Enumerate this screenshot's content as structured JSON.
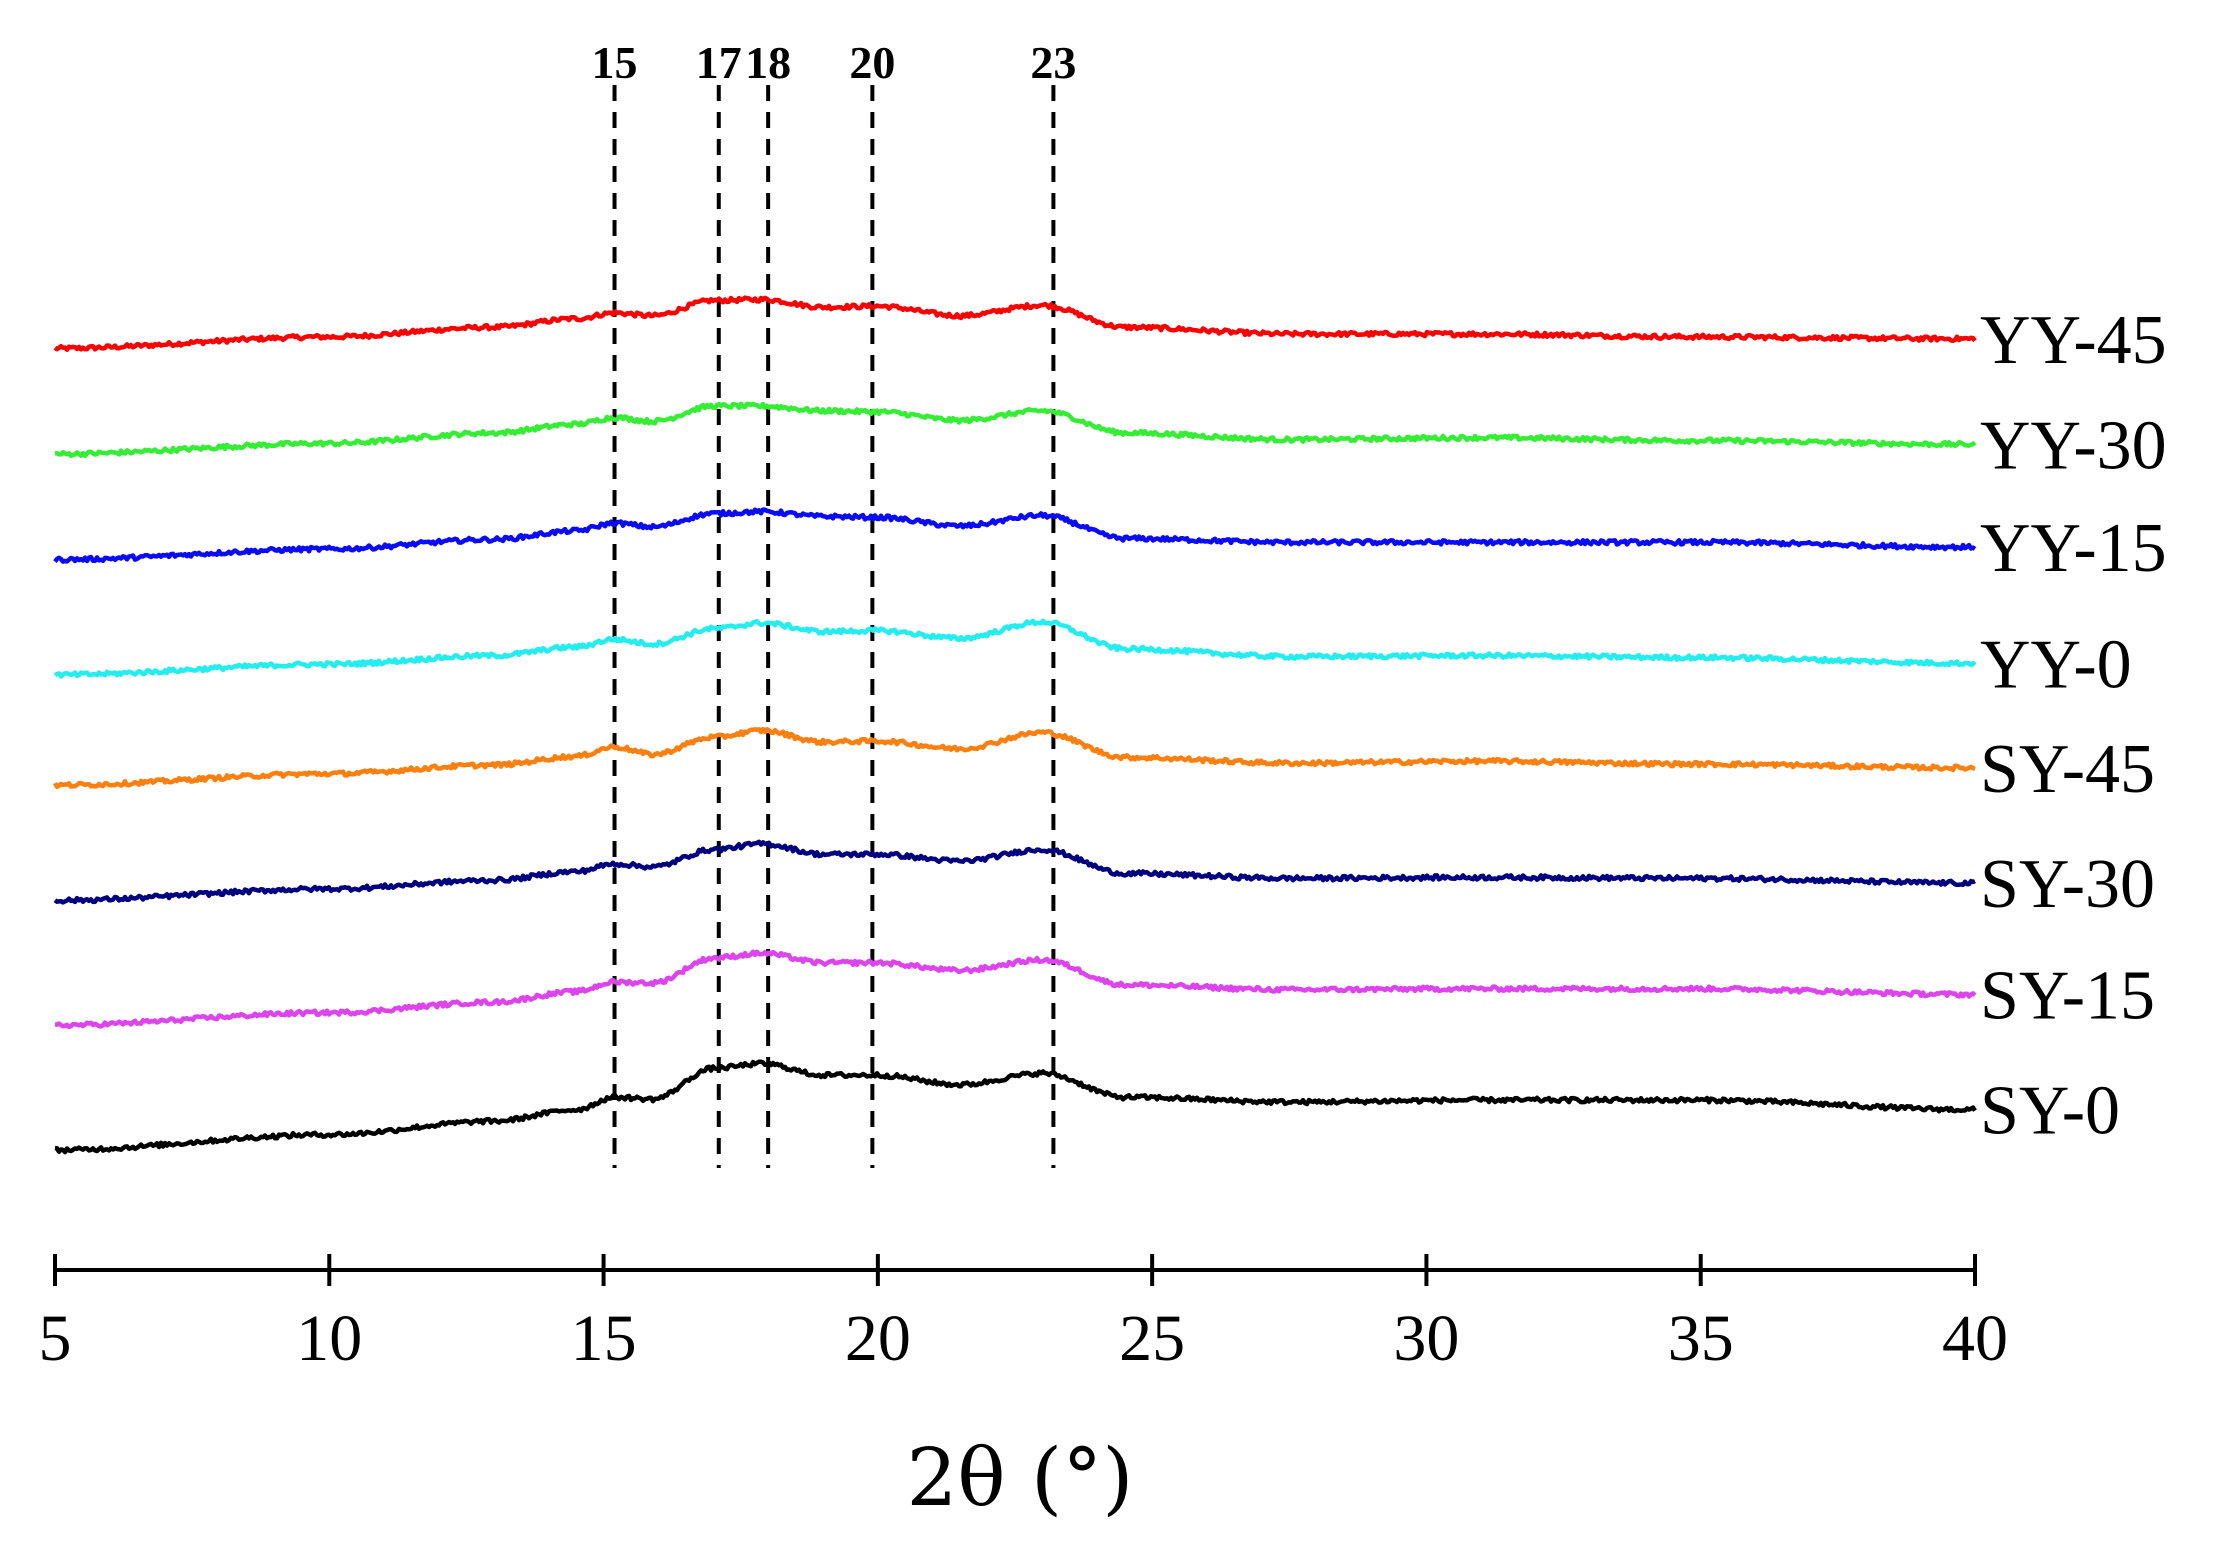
{
  "chart_data": {
    "type": "line",
    "xlabel": "2θ (°)",
    "ylabel": "",
    "xlim": [
      5,
      40
    ],
    "xticks": [
      5,
      10,
      15,
      20,
      25,
      30,
      35,
      40
    ],
    "y_axis_shown": false,
    "grid": false,
    "legend": "labels at right end of each curve",
    "reference_lines": {
      "positions": [
        15.2,
        17.1,
        18.0,
        19.9,
        23.2
      ],
      "labels": [
        "15",
        "17",
        "18",
        "20",
        "23"
      ],
      "style": "dashed black vertical"
    },
    "x": [
      5,
      10,
      13,
      14.5,
      15.2,
      15.9,
      17.0,
      17.9,
      19.0,
      20.0,
      21.5,
      23.0,
      24.5,
      27.5,
      31,
      35,
      40
    ],
    "series": [
      {
        "name": "YY-45",
        "color": "#ff0000",
        "values": [
          8.35,
          8.47,
          8.57,
          8.66,
          8.72,
          8.69,
          8.85,
          8.86,
          8.78,
          8.79,
          8.69,
          8.8,
          8.57,
          8.5,
          8.5,
          8.47,
          8.45
        ]
      },
      {
        "name": "YY-30",
        "color": "#33ee33",
        "values": [
          7.25,
          7.36,
          7.47,
          7.56,
          7.63,
          7.59,
          7.75,
          7.75,
          7.7,
          7.69,
          7.6,
          7.7,
          7.47,
          7.4,
          7.42,
          7.39,
          7.35
        ]
      },
      {
        "name": "YY-15",
        "color": "#0a0aff",
        "values": [
          6.15,
          6.26,
          6.36,
          6.45,
          6.53,
          6.49,
          6.63,
          6.65,
          6.6,
          6.59,
          6.5,
          6.61,
          6.37,
          6.33,
          6.33,
          6.33,
          6.28
        ]
      },
      {
        "name": "YY-0",
        "color": "#22eef0",
        "values": [
          4.95,
          5.06,
          5.15,
          5.24,
          5.32,
          5.27,
          5.43,
          5.49,
          5.4,
          5.41,
          5.33,
          5.5,
          5.22,
          5.14,
          5.15,
          5.13,
          5.07
        ]
      },
      {
        "name": "SY-45",
        "color": "#ff7f0e",
        "values": [
          3.8,
          3.92,
          4.01,
          4.1,
          4.2,
          4.12,
          4.3,
          4.37,
          4.25,
          4.26,
          4.18,
          4.35,
          4.09,
          4.03,
          4.05,
          4.02,
          3.98
        ]
      },
      {
        "name": "SY-30",
        "color": "#000080",
        "values": [
          2.6,
          2.72,
          2.81,
          2.9,
          2.98,
          2.95,
          3.13,
          3.19,
          3.08,
          3.08,
          3.01,
          3.13,
          2.88,
          2.83,
          2.84,
          2.83,
          2.78
        ]
      },
      {
        "name": "SY-15",
        "color": "#dd44ee",
        "values": [
          1.3,
          1.43,
          1.54,
          1.65,
          1.75,
          1.74,
          2.0,
          2.05,
          1.95,
          1.95,
          1.87,
          1.98,
          1.72,
          1.67,
          1.68,
          1.68,
          1.62
        ]
      },
      {
        "name": "SY-0",
        "color": "#000000",
        "values": [
          0.0,
          0.16,
          0.3,
          0.42,
          0.55,
          0.53,
          0.85,
          0.9,
          0.78,
          0.78,
          0.68,
          0.8,
          0.55,
          0.5,
          0.52,
          0.52,
          0.42
        ]
      }
    ]
  }
}
